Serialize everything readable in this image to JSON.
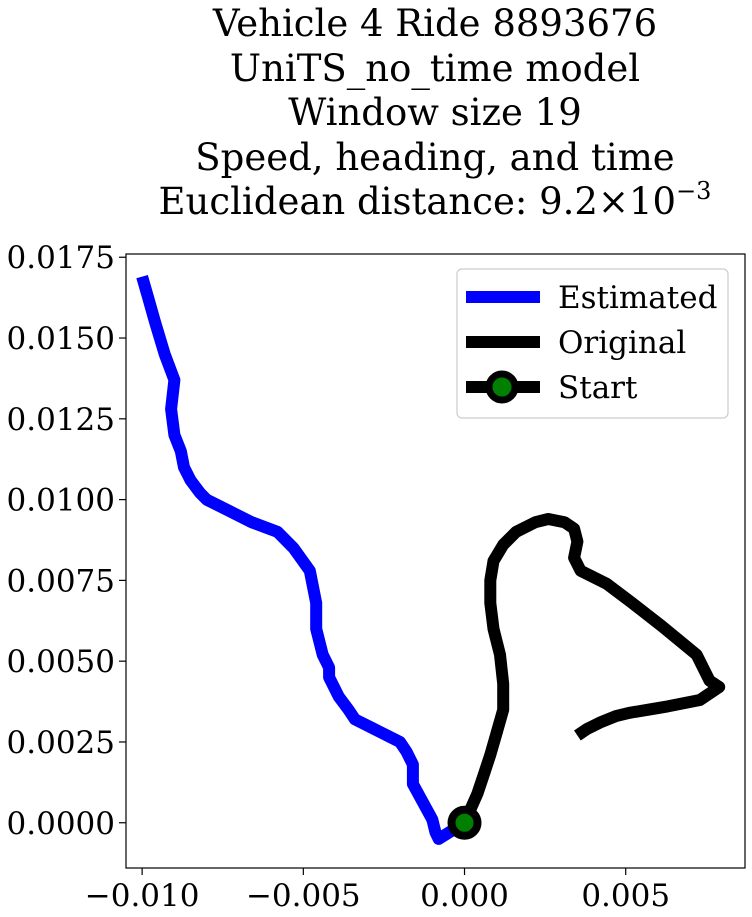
{
  "chart_data": {
    "type": "line",
    "title_lines": [
      "Vehicle 4 Ride 8893676",
      "UniTS_no_time model",
      "Window size 19",
      "Speed, heading, and time"
    ],
    "title_distance_prefix": "Euclidean distance: ",
    "title_distance_mantissa": "9.2",
    "title_distance_times": "×",
    "title_distance_base": "10",
    "title_distance_exponent": "−3",
    "xlabel": "",
    "ylabel": "",
    "xlim": [
      -0.0105,
      0.0087
    ],
    "ylim": [
      -0.0014,
      0.0176
    ],
    "x_ticks": [
      {
        "value": -0.01,
        "label": "−0.010"
      },
      {
        "value": -0.005,
        "label": "−0.005"
      },
      {
        "value": 0.0,
        "label": "0.000"
      },
      {
        "value": 0.005,
        "label": "0.005"
      }
    ],
    "y_ticks": [
      {
        "value": 0.0,
        "label": "0.0000"
      },
      {
        "value": 0.0025,
        "label": "0.0025"
      },
      {
        "value": 0.005,
        "label": "0.0050"
      },
      {
        "value": 0.0075,
        "label": "0.0075"
      },
      {
        "value": 0.01,
        "label": "0.0100"
      },
      {
        "value": 0.0125,
        "label": "0.0125"
      },
      {
        "value": 0.015,
        "label": "0.0150"
      },
      {
        "value": 0.0175,
        "label": "0.0175"
      }
    ],
    "grid": false,
    "legend_position": "top-right",
    "series": [
      {
        "name": "Estimated",
        "color": "#0000ff",
        "points": [
          [
            0.0,
            0.0
          ],
          [
            -0.0008,
            -0.0005
          ],
          [
            -0.0009,
            -0.0003
          ],
          [
            -0.001,
            0.0001
          ],
          [
            -0.0016,
            0.0012
          ],
          [
            -0.0016,
            0.0018
          ],
          [
            -0.0018,
            0.0022
          ],
          [
            -0.002,
            0.0025
          ],
          [
            -0.0024,
            0.0027
          ],
          [
            -0.0028,
            0.0029
          ],
          [
            -0.0034,
            0.0032
          ],
          [
            -0.0036,
            0.0035
          ],
          [
            -0.0039,
            0.0039
          ],
          [
            -0.0042,
            0.0045
          ],
          [
            -0.0042,
            0.0048
          ],
          [
            -0.0044,
            0.0052
          ],
          [
            -0.0046,
            0.006
          ],
          [
            -0.0046,
            0.0068
          ],
          [
            -0.0048,
            0.0078
          ],
          [
            -0.0053,
            0.0085
          ],
          [
            -0.0058,
            0.009
          ],
          [
            -0.0066,
            0.0093
          ],
          [
            -0.0074,
            0.0097
          ],
          [
            -0.008,
            0.01
          ],
          [
            -0.0082,
            0.0102
          ],
          [
            -0.0085,
            0.0106
          ],
          [
            -0.0087,
            0.011
          ],
          [
            -0.0088,
            0.0115
          ],
          [
            -0.009,
            0.012
          ],
          [
            -0.0091,
            0.0128
          ],
          [
            -0.009,
            0.0137
          ],
          [
            -0.0093,
            0.0145
          ],
          [
            -0.0096,
            0.0155
          ],
          [
            -0.0098,
            0.0162
          ],
          [
            -0.01,
            0.0169
          ]
        ]
      },
      {
        "name": "Original",
        "color": "#000000",
        "points": [
          [
            0.0,
            0.0
          ],
          [
            0.0004,
            0.0009
          ],
          [
            0.0006,
            0.0015
          ],
          [
            0.0008,
            0.0021
          ],
          [
            0.001,
            0.0028
          ],
          [
            0.0012,
            0.0035
          ],
          [
            0.0012,
            0.0043
          ],
          [
            0.0011,
            0.0052
          ],
          [
            0.0009,
            0.006
          ],
          [
            0.0008,
            0.0068
          ],
          [
            0.0008,
            0.0075
          ],
          [
            0.0009,
            0.0081
          ],
          [
            0.0012,
            0.0086
          ],
          [
            0.0016,
            0.009
          ],
          [
            0.0022,
            0.0093
          ],
          [
            0.0026,
            0.0094
          ],
          [
            0.0031,
            0.0093
          ],
          [
            0.0034,
            0.0091
          ],
          [
            0.0035,
            0.0087
          ],
          [
            0.0034,
            0.0082
          ],
          [
            0.0036,
            0.0078
          ],
          [
            0.0044,
            0.0074
          ],
          [
            0.0052,
            0.0068
          ],
          [
            0.0061,
            0.0061
          ],
          [
            0.0072,
            0.0052
          ],
          [
            0.0076,
            0.0044
          ],
          [
            0.0079,
            0.0042
          ],
          [
            0.0073,
            0.0038
          ],
          [
            0.0063,
            0.0036
          ],
          [
            0.0057,
            0.0035
          ],
          [
            0.0051,
            0.0034
          ],
          [
            0.0047,
            0.0033
          ],
          [
            0.0042,
            0.0031
          ],
          [
            0.0038,
            0.0029
          ],
          [
            0.0035,
            0.0027
          ]
        ]
      }
    ],
    "start_marker": {
      "name": "Start",
      "x": 0.0,
      "y": 0.0,
      "edge_color": "#000000",
      "face_color": "#008000"
    }
  }
}
